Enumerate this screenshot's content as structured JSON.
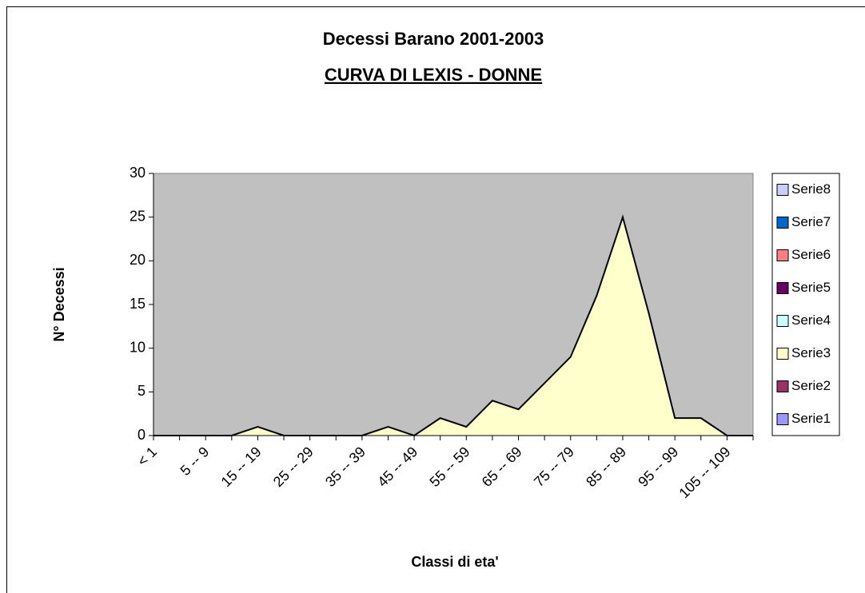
{
  "chart_data": {
    "type": "area",
    "stacked": true,
    "title": "Decessi Barano 2001-2003",
    "subtitle": "CURVA DI LEXIS - DONNE",
    "x_label": "Classi di eta'",
    "y_label": "N° Decessi",
    "categories": [
      "< 1",
      null,
      "5 -- 9",
      null,
      "15 -- 19",
      null,
      "25 -- 29",
      null,
      "35 -- 39",
      null,
      "45 -- 49",
      null,
      "55 -- 59",
      null,
      "65 -- 69",
      null,
      "75 -- 79",
      null,
      "85 -- 89",
      null,
      "95 -- 99",
      null,
      "105 -- 109",
      null
    ],
    "series": [
      {
        "name": "Serie1",
        "color": "#9999ff",
        "values": [
          0,
          0,
          0,
          0,
          0,
          0,
          0,
          0,
          0,
          0,
          0,
          0,
          0,
          0,
          0,
          0,
          0,
          0,
          0,
          0,
          0,
          0,
          0,
          0
        ]
      },
      {
        "name": "Serie2",
        "color": "#993366",
        "values": [
          0,
          0,
          0,
          0,
          0,
          0,
          0,
          0,
          0,
          0,
          0,
          0,
          0,
          0,
          0,
          0,
          0,
          0,
          0,
          0,
          0,
          0,
          0,
          0
        ]
      },
      {
        "name": "Serie3",
        "color": "#ffffcc",
        "values": [
          0,
          0,
          0,
          0,
          1,
          0,
          0,
          0,
          0,
          1,
          0,
          2,
          1,
          4,
          3,
          6,
          9,
          16,
          25,
          14,
          2,
          2,
          0,
          0
        ]
      },
      {
        "name": "Serie4",
        "color": "#ccffff",
        "values": [
          0,
          0,
          0,
          0,
          0,
          0,
          0,
          0,
          0,
          0,
          0,
          0,
          0,
          0,
          0,
          0,
          0,
          0,
          0,
          0,
          0,
          0,
          0,
          0
        ]
      },
      {
        "name": "Serie5",
        "color": "#660066",
        "values": [
          0,
          0,
          0,
          0,
          0,
          0,
          0,
          0,
          0,
          0,
          0,
          0,
          0,
          0,
          0,
          0,
          0,
          0,
          0,
          0,
          0,
          0,
          0,
          0
        ]
      },
      {
        "name": "Serie6",
        "color": "#ff8080",
        "values": [
          0,
          0,
          0,
          0,
          0,
          0,
          0,
          0,
          0,
          0,
          0,
          0,
          0,
          0,
          0,
          0,
          0,
          0,
          0,
          0,
          0,
          0,
          0,
          0
        ]
      },
      {
        "name": "Serie7",
        "color": "#0066cc",
        "values": [
          0,
          0,
          0,
          0,
          0,
          0,
          0,
          0,
          0,
          0,
          0,
          0,
          0,
          0,
          0,
          0,
          0,
          0,
          0,
          0,
          0,
          0,
          0,
          0
        ]
      },
      {
        "name": "Serie8",
        "color": "#ccccff",
        "values": [
          0,
          0,
          0,
          0,
          0,
          0,
          0,
          0,
          0,
          0,
          0,
          0,
          0,
          0,
          0,
          0,
          0,
          0,
          0,
          0,
          0,
          0,
          0,
          0
        ]
      }
    ],
    "ylim": [
      0,
      30
    ],
    "yticks": [
      0,
      5,
      10,
      15,
      20,
      25,
      30
    ],
    "plot_background": "#c0c0c0",
    "legend": "right"
  }
}
